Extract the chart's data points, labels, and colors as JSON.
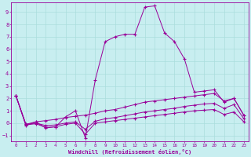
{
  "xlabel": "Windchill (Refroidissement éolien,°C)",
  "bg_color": "#c8eef0",
  "grid_color": "#aadddd",
  "line_color": "#990099",
  "xlim": [
    -0.5,
    23.5
  ],
  "ylim": [
    -1.5,
    9.8
  ],
  "xticks": [
    0,
    1,
    2,
    3,
    4,
    5,
    6,
    7,
    8,
    9,
    10,
    11,
    12,
    13,
    14,
    15,
    16,
    17,
    18,
    19,
    20,
    21,
    22,
    23
  ],
  "yticks": [
    -1,
    0,
    1,
    2,
    3,
    4,
    5,
    6,
    7,
    8,
    9
  ],
  "line1_x": [
    0,
    1,
    2,
    3,
    4,
    5,
    6,
    7,
    8,
    9,
    10,
    11,
    12,
    13,
    14,
    15,
    16,
    17,
    18,
    19,
    20,
    21,
    22,
    23
  ],
  "line1_y": [
    2.2,
    -0.2,
    0.1,
    -0.4,
    -0.3,
    0.5,
    1.0,
    -1.2,
    3.5,
    6.6,
    7.0,
    7.2,
    7.2,
    9.4,
    9.5,
    7.3,
    6.6,
    5.2,
    2.5,
    2.6,
    2.7,
    1.7,
    2.0,
    0.6
  ],
  "line2_x": [
    0,
    1,
    2,
    3,
    4,
    5,
    6,
    7,
    8,
    9,
    10,
    11,
    12,
    13,
    14,
    15,
    16,
    17,
    18,
    19,
    20,
    21,
    22,
    23
  ],
  "line2_y": [
    2.2,
    -0.1,
    0.1,
    0.2,
    0.3,
    0.45,
    0.55,
    0.65,
    0.8,
    1.0,
    1.1,
    1.3,
    1.5,
    1.7,
    1.8,
    1.9,
    2.0,
    2.1,
    2.2,
    2.3,
    2.4,
    1.8,
    2.0,
    0.65
  ],
  "line3_x": [
    0,
    1,
    2,
    3,
    4,
    5,
    6,
    7,
    8,
    9,
    10,
    11,
    12,
    13,
    14,
    15,
    16,
    17,
    18,
    19,
    20,
    21,
    22,
    23
  ],
  "line3_y": [
    2.2,
    -0.1,
    0.0,
    -0.2,
    -0.15,
    0.0,
    0.1,
    -0.5,
    0.15,
    0.35,
    0.45,
    0.6,
    0.75,
    0.9,
    1.0,
    1.1,
    1.2,
    1.35,
    1.45,
    1.55,
    1.6,
    1.2,
    1.5,
    0.35
  ],
  "line4_x": [
    0,
    1,
    2,
    3,
    4,
    5,
    6,
    7,
    8,
    9,
    10,
    11,
    12,
    13,
    14,
    15,
    16,
    17,
    18,
    19,
    20,
    21,
    22,
    23
  ],
  "line4_y": [
    2.2,
    -0.15,
    -0.05,
    -0.35,
    -0.3,
    -0.1,
    0.0,
    -0.9,
    0.0,
    0.1,
    0.2,
    0.3,
    0.4,
    0.5,
    0.6,
    0.7,
    0.8,
    0.9,
    1.0,
    1.05,
    1.1,
    0.7,
    0.9,
    0.1
  ]
}
